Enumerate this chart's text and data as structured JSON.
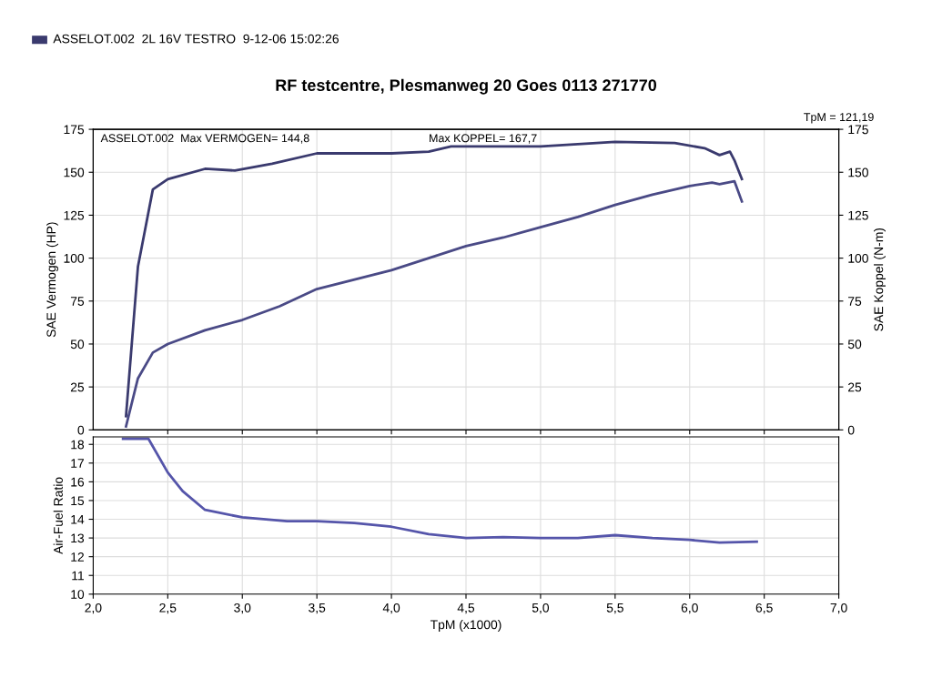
{
  "chart_data": [
    {
      "type": "line",
      "title": "RF testcentre, Plesmanweg 20 Goes 0113 271770",
      "subtitle": "ASSELOT.002  2L 16V TESTRO  9-12-06 15:02:26",
      "ylabel": "SAE Vermogen (HP)",
      "y2label": "SAE Koppel (N-m)",
      "annotations": [
        "ASSELOT.002  Max VERMOGEN= 144,8",
        "Max KOPPEL= 167,7",
        "TpM = 121,19"
      ],
      "xlim": [
        2.0,
        7.0
      ],
      "ylim": [
        0,
        175
      ],
      "yticks": [
        0,
        25,
        50,
        75,
        100,
        125,
        150,
        175
      ],
      "y2lim": [
        0,
        175
      ],
      "y2ticks": [
        0,
        25,
        50,
        75,
        100,
        125,
        150,
        175
      ],
      "grid": true,
      "tick_labels": "y",
      "series": [
        {
          "color": "#4a4a86",
          "axis": "y",
          "x": [
            2.22,
            2.3,
            2.4,
            2.5,
            2.75,
            3.0,
            3.25,
            3.5,
            4.0,
            4.25,
            4.5,
            4.75,
            5.0,
            5.25,
            5.5,
            5.75,
            6.0,
            6.15,
            6.2,
            6.3,
            6.35
          ],
          "values": [
            2,
            30,
            45,
            50,
            58,
            64,
            72,
            82,
            93,
            100,
            107,
            112,
            118,
            124,
            131,
            137,
            142,
            144,
            143,
            144.8,
            133
          ]
        },
        {
          "color": "#3a3a6e",
          "axis": "y2",
          "x": [
            2.22,
            2.3,
            2.4,
            2.5,
            2.75,
            2.95,
            3.2,
            3.5,
            4.0,
            4.25,
            4.4,
            4.75,
            5.0,
            5.5,
            5.9,
            6.1,
            6.2,
            6.27,
            6.3,
            6.35
          ],
          "values": [
            8,
            95,
            140,
            146,
            152,
            151,
            155,
            161,
            161,
            162,
            165,
            165,
            165,
            167.7,
            167,
            164,
            160,
            162,
            157,
            146
          ]
        }
      ]
    },
    {
      "type": "line",
      "xlabel": "TpM (x1000)",
      "ylabel": "Air-Fuel Ratio",
      "xlim": [
        2.0,
        7.0
      ],
      "xticks": [
        {
          "value": 2.0,
          "label": "2,0"
        },
        {
          "value": 2.5,
          "label": "2,5"
        },
        {
          "value": 3.0,
          "label": "3,0"
        },
        {
          "value": 3.5,
          "label": "3,5"
        },
        {
          "value": 4.0,
          "label": "4,0"
        },
        {
          "value": 4.5,
          "label": "4,5"
        },
        {
          "value": 5.0,
          "label": "5,0"
        },
        {
          "value": 5.5,
          "label": "5,5"
        },
        {
          "value": 6.0,
          "label": "6,0"
        },
        {
          "value": 6.5,
          "label": "6,5"
        },
        {
          "value": 7.0,
          "label": "7,0"
        }
      ],
      "ylim": [
        10,
        18.4
      ],
      "yticks": [
        10,
        11,
        12,
        13,
        14,
        15,
        16,
        17,
        18
      ],
      "grid": true,
      "series": [
        {
          "color": "#5555aa",
          "x": [
            2.2,
            2.37,
            2.5,
            2.6,
            2.75,
            3.0,
            3.3,
            3.5,
            3.75,
            4.0,
            4.25,
            4.5,
            4.75,
            5.0,
            5.25,
            5.5,
            5.75,
            6.0,
            6.2,
            6.45
          ],
          "values": [
            18.3,
            18.3,
            16.5,
            15.5,
            14.5,
            14.1,
            13.9,
            13.9,
            13.8,
            13.6,
            13.2,
            13.0,
            13.05,
            13.0,
            13.0,
            13.15,
            13.0,
            12.9,
            12.75,
            12.8
          ]
        }
      ]
    }
  ]
}
